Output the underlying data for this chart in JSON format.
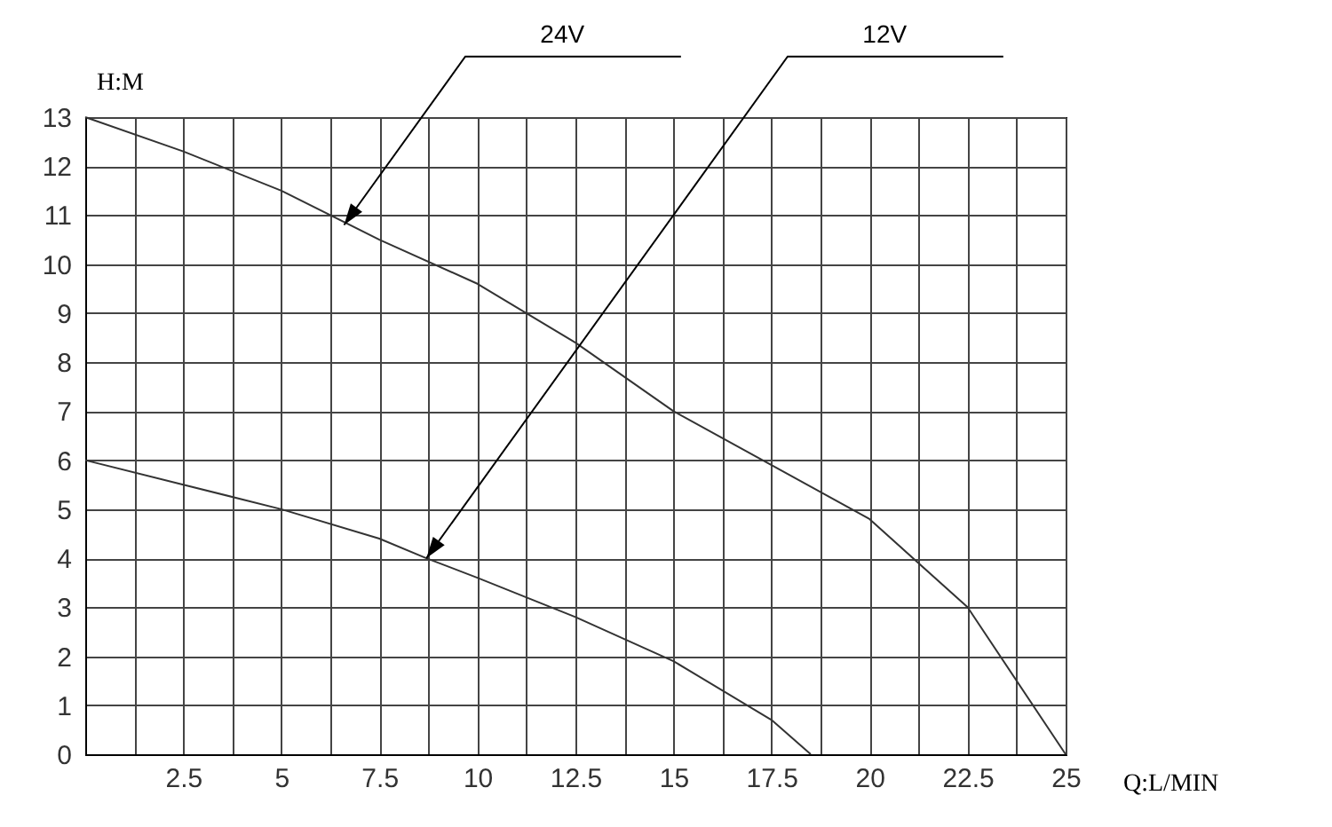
{
  "chart_data": {
    "type": "line",
    "xlabel": "Q:L/MIN",
    "ylabel": "H:M",
    "x": [
      0,
      2.5,
      5,
      7.5,
      10,
      12.5,
      15,
      17.5,
      20,
      22.5,
      25
    ],
    "series": [
      {
        "color": "#333333",
        "values": [
          13,
          12.3,
          11.5,
          10.5,
          9.6,
          8.4,
          7.0,
          5.9,
          4.8,
          3.0,
          0
        ]
      },
      {
        "color": "#333333",
        "x": [
          0,
          2.5,
          5,
          7.5,
          8.7,
          10,
          12.5,
          15,
          17.5,
          18.5
        ],
        "values": [
          6,
          5.5,
          5.0,
          4.4,
          4.0,
          3.6,
          2.8,
          1.9,
          0.7,
          0
        ]
      }
    ],
    "annotations": [
      {
        "text": "24V",
        "x": 6.6,
        "y": 10.8
      },
      {
        "text": "12V",
        "x": 8.7,
        "y": 4
      }
    ],
    "xlim": [
      0,
      25
    ],
    "ylim": [
      0,
      13
    ],
    "xticks": [
      {
        "value": 0,
        "label": null
      },
      {
        "value": 1.25,
        "label": null
      },
      2.5,
      {
        "value": 3.75,
        "label": null
      },
      5,
      {
        "value": 6.25,
        "label": null
      },
      7.5,
      {
        "value": 8.75,
        "label": null
      },
      10,
      {
        "value": 11.25,
        "label": null
      },
      12.5,
      {
        "value": 13.75,
        "label": null
      },
      15,
      {
        "value": 16.25,
        "label": null
      },
      17.5,
      {
        "value": 18.75,
        "label": null
      },
      20,
      {
        "value": 21.25,
        "label": null
      },
      22.5,
      {
        "value": 23.75,
        "label": null
      },
      25
    ],
    "yticks": [
      0,
      1,
      2,
      3,
      4,
      5,
      6,
      7,
      8,
      9,
      10,
      11,
      12,
      13
    ],
    "grid": true,
    "marker": "none",
    "line_style": "solid"
  }
}
